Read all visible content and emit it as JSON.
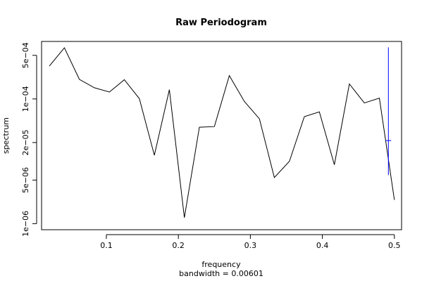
{
  "chart_data": {
    "type": "line",
    "title": "Raw Periodogram",
    "xlabel": "frequency",
    "ylabel": "spectrum",
    "subtitle": "bandwidth = 0.00601",
    "y_log_scale": true,
    "xlim": [
      0.01,
      0.51
    ],
    "ylim": [
      8e-07,
      0.000835
    ],
    "x_ticks": [
      0.1,
      0.2,
      0.3,
      0.4,
      0.5
    ],
    "x_tick_labels": [
      "0.1",
      "0.2",
      "0.3",
      "0.4",
      "0.5"
    ],
    "y_ticks": [
      1e-06,
      5e-06,
      2e-05,
      0.0001,
      0.0005
    ],
    "y_tick_labels": [
      "1e−06",
      "5e−06",
      "2e−05",
      "1e−04",
      "5e−04"
    ],
    "series": [
      {
        "color": "#000000",
        "x": [
          0.0208,
          0.0417,
          0.0625,
          0.0833,
          0.1042,
          0.125,
          0.1458,
          0.1667,
          0.1875,
          0.2083,
          0.2292,
          0.25,
          0.2708,
          0.2917,
          0.3125,
          0.3333,
          0.3542,
          0.375,
          0.3958,
          0.4167,
          0.4375,
          0.4583,
          0.4792,
          0.5
        ],
        "y": [
          0.000336,
          0.000661,
          0.000206,
          0.000151,
          0.000129,
          0.000203,
          0.000101,
          1.25e-05,
          0.000141,
          1.25e-06,
          3.52e-05,
          3.6e-05,
          0.000237,
          9.1e-05,
          4.8e-05,
          5.5e-06,
          1e-05,
          5.2e-05,
          6.2e-05,
          8.8e-06,
          0.000174,
          8.6e-05,
          0.000103,
          2.4e-06
        ]
      }
    ],
    "ci_bar": {
      "color": "#0000ff",
      "x": 0.4917,
      "y_low": 6e-06,
      "y_high": 0.000672,
      "y_center": 2.15e-05
    }
  }
}
